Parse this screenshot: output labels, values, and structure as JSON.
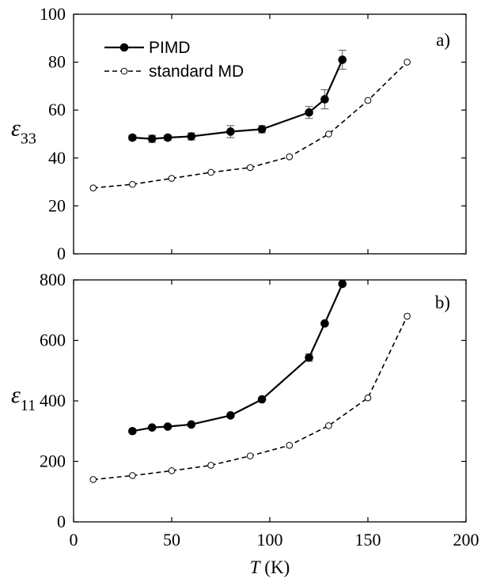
{
  "chart_data": [
    {
      "type": "line",
      "panel_label": "a)",
      "ylabel": {
        "symbol": "ε",
        "subscript": "33"
      },
      "xlim": [
        0,
        200
      ],
      "ylim": [
        0,
        100
      ],
      "yticks": [
        0,
        20,
        40,
        60,
        80,
        100
      ],
      "legend": {
        "position": "top-left"
      },
      "series": [
        {
          "name": "PIMD",
          "style": "solid-filled",
          "x": [
            30,
            40,
            48,
            60,
            80,
            96,
            120,
            128,
            137
          ],
          "y": [
            48.5,
            48,
            48.5,
            49,
            51,
            52,
            59,
            64.5,
            81
          ],
          "err": [
            1,
            1.5,
            1,
            1.5,
            2.5,
            1.5,
            2.5,
            4,
            4
          ]
        },
        {
          "name": "standard MD",
          "style": "dashed-open",
          "x": [
            10,
            30,
            50,
            70,
            90,
            110,
            130,
            150,
            170
          ],
          "y": [
            27.5,
            29,
            31.5,
            34,
            36,
            40.5,
            50,
            64,
            80
          ]
        }
      ]
    },
    {
      "type": "line",
      "panel_label": "b)",
      "ylabel": {
        "symbol": "ε",
        "subscript": "11"
      },
      "xlabel": {
        "symbol": "T",
        "unit": " (K)"
      },
      "xlim": [
        0,
        200
      ],
      "ylim": [
        0,
        800
      ],
      "xticks": [
        0,
        50,
        100,
        150,
        200
      ],
      "yticks": [
        0,
        200,
        400,
        600,
        800
      ],
      "series": [
        {
          "name": "PIMD",
          "style": "solid-filled",
          "x": [
            30,
            40,
            48,
            60,
            80,
            96,
            120,
            128,
            137
          ],
          "y": [
            300,
            312,
            315,
            322,
            352,
            405,
            543,
            656,
            787
          ],
          "err": [
            0,
            0,
            0,
            0,
            0,
            0,
            12,
            0,
            0
          ]
        },
        {
          "name": "standard MD",
          "style": "dashed-open",
          "x": [
            10,
            30,
            50,
            70,
            90,
            110,
            130,
            150,
            170
          ],
          "y": [
            140,
            153,
            169,
            187,
            218,
            253,
            318,
            410,
            680
          ]
        }
      ]
    }
  ]
}
